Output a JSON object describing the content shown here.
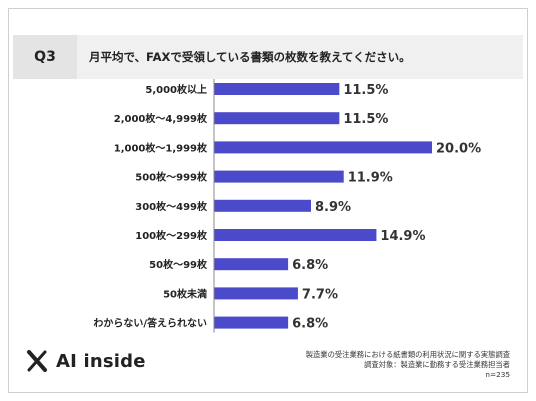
{
  "question": {
    "badge": "Q3",
    "text": "月平均で、FAXで受領している書類の枚数を教えてください。"
  },
  "brand": {
    "name": "AI inside",
    "icon": "x-mark-icon"
  },
  "source": {
    "line1": "製造業の受注業務における紙書類の利用状況に関する実態調査",
    "line2": "調査対象：製造業に勤務する受注業務担当者",
    "line3": "n=235"
  },
  "colors": {
    "bar": "#4b4acb",
    "header_bg": "#f0f0f0",
    "badge_bg": "#e4e4e4"
  },
  "chart_data": {
    "type": "bar",
    "orientation": "horizontal",
    "categories": [
      "5,000枚以上",
      "2,000枚〜4,999枚",
      "1,000枚〜1,999枚",
      "500枚〜999枚",
      "300枚〜499枚",
      "100枚〜299枚",
      "50枚〜99枚",
      "50枚未満",
      "わからない/答えられない"
    ],
    "values": [
      11.5,
      11.5,
      20.0,
      11.9,
      8.9,
      14.9,
      6.8,
      7.7,
      6.8
    ],
    "value_labels": [
      "11.5%",
      "11.5%",
      "20.0%",
      "11.9%",
      "8.9%",
      "14.9%",
      "6.8%",
      "7.7%",
      "6.8%"
    ],
    "xlim": [
      0,
      20
    ],
    "grid": false,
    "legend": "none"
  }
}
